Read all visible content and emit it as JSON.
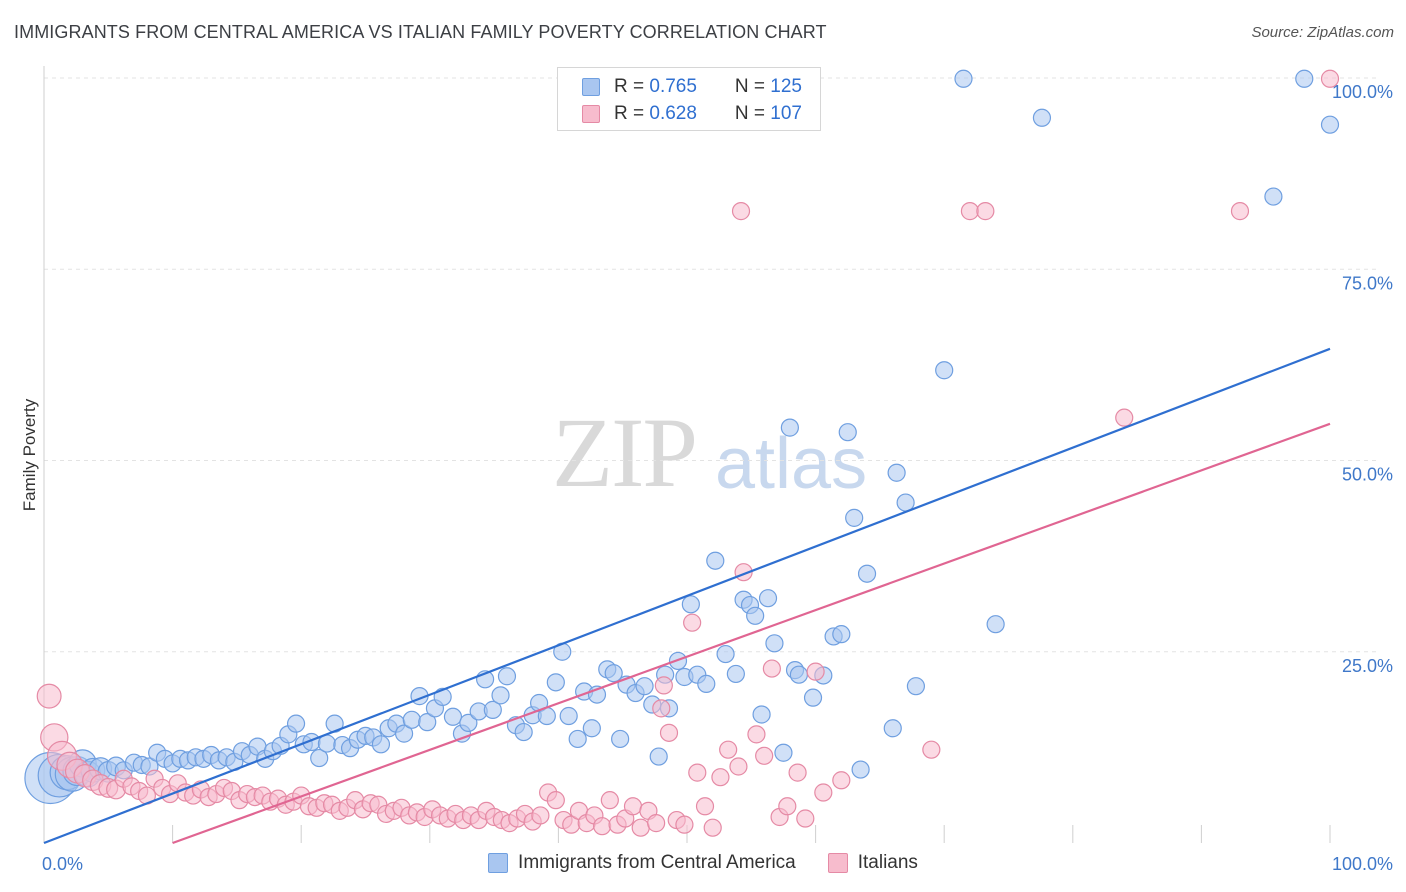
{
  "title": "IMMIGRANTS FROM CENTRAL AMERICA VS ITALIAN FAMILY POVERTY CORRELATION CHART",
  "source": "Source: ZipAtlas.com",
  "watermark": {
    "zip": "ZIP",
    "atlas": "atlas"
  },
  "legend": {
    "rows": [
      {
        "r_label": "R = ",
        "r_value": "0.765",
        "n_label": "N = ",
        "n_value": "125",
        "color": "#a9c6f0",
        "border": "#6f9fe0"
      },
      {
        "r_label": "R = ",
        "r_value": "0.628",
        "n_label": "N = ",
        "n_value": "107",
        "color": "#f7bccd",
        "border": "#e58aa5"
      }
    ]
  },
  "bottom_legend": [
    {
      "label": "Immigrants from Central America",
      "color": "#a9c6f0",
      "border": "#6f9fe0"
    },
    {
      "label": "Italians",
      "color": "#f7bccd",
      "border": "#e58aa5"
    }
  ],
  "chart_data": {
    "type": "scatter",
    "title": "IMMIGRANTS FROM CENTRAL AMERICA VS ITALIAN FAMILY POVERTY CORRELATION CHART",
    "xlabel": "",
    "ylabel": "Family Poverty",
    "xlim": [
      0,
      100
    ],
    "ylim": [
      0,
      100
    ],
    "x_tick_labels": [
      "0.0%",
      "100.0%"
    ],
    "y_tick_labels": [
      "25.0%",
      "50.0%",
      "75.0%",
      "100.0%"
    ],
    "y_ticks": [
      25,
      50,
      75,
      100
    ],
    "grid": "horizontal dashed",
    "legend_position": "top-center",
    "series": [
      {
        "name": "Immigrants from Central America",
        "color": "#6f9fe0",
        "fill": "#a9c6f0",
        "line_color": "#2f6fd0",
        "trend": {
          "x0": 0,
          "y0": 0,
          "x1": 100,
          "y1": 64.6
        },
        "points": [
          [
            0.5,
            8.5,
            3
          ],
          [
            1.2,
            8.8,
            2.5
          ],
          [
            1.8,
            9.2,
            2
          ],
          [
            2.2,
            9.0,
            2
          ],
          [
            2.6,
            9.4,
            1.7
          ],
          [
            3.0,
            10.4,
            1.6
          ],
          [
            3.4,
            9.0,
            1.5
          ],
          [
            3.8,
            9.5,
            1.4
          ],
          [
            4.4,
            9.7,
            1.3
          ],
          [
            5.0,
            9.3,
            1.2
          ],
          [
            5.6,
            10.0,
            1.1
          ],
          [
            6.2,
            9.5,
            1
          ],
          [
            7.0,
            10.5,
            1
          ],
          [
            7.6,
            10.2,
            1
          ],
          [
            8.2,
            10.0,
            1
          ],
          [
            8.8,
            11.8,
            1
          ],
          [
            9.4,
            11.0,
            1
          ],
          [
            10.0,
            10.4,
            1
          ],
          [
            10.6,
            11.0,
            1
          ],
          [
            11.2,
            10.8,
            1
          ],
          [
            11.8,
            11.2,
            1
          ],
          [
            12.4,
            11.0,
            1
          ],
          [
            13.0,
            11.5,
            1
          ],
          [
            13.6,
            10.8,
            1
          ],
          [
            14.2,
            11.2,
            1
          ],
          [
            14.8,
            10.6,
            1
          ],
          [
            15.4,
            12.0,
            1
          ],
          [
            16.0,
            11.5,
            1
          ],
          [
            16.6,
            12.6,
            1
          ],
          [
            17.2,
            11.0,
            1
          ],
          [
            17.8,
            12.0,
            1
          ],
          [
            18.4,
            12.7,
            1
          ],
          [
            19.0,
            14.2,
            1
          ],
          [
            19.6,
            15.6,
            1
          ],
          [
            20.2,
            12.9,
            1
          ],
          [
            20.8,
            13.2,
            1
          ],
          [
            21.4,
            11.1,
            1
          ],
          [
            22.0,
            13.0,
            1
          ],
          [
            22.6,
            15.6,
            1
          ],
          [
            23.2,
            12.8,
            1
          ],
          [
            23.8,
            12.4,
            1
          ],
          [
            24.4,
            13.5,
            1
          ],
          [
            25.0,
            14.0,
            1
          ],
          [
            25.6,
            13.8,
            1
          ],
          [
            26.2,
            12.9,
            1
          ],
          [
            26.8,
            15.0,
            1
          ],
          [
            27.4,
            15.6,
            1
          ],
          [
            28.0,
            14.3,
            1
          ],
          [
            28.6,
            16.1,
            1
          ],
          [
            29.2,
            19.2,
            1
          ],
          [
            29.8,
            15.8,
            1
          ],
          [
            30.4,
            17.6,
            1
          ],
          [
            31.0,
            19.1,
            1
          ],
          [
            31.8,
            16.5,
            1
          ],
          [
            32.5,
            14.3,
            1
          ],
          [
            33.0,
            15.7,
            1
          ],
          [
            33.8,
            17.2,
            1
          ],
          [
            34.3,
            21.4,
            1
          ],
          [
            34.9,
            17.4,
            1
          ],
          [
            35.5,
            19.3,
            1
          ],
          [
            36.0,
            21.8,
            1
          ],
          [
            36.7,
            15.4,
            1
          ],
          [
            37.3,
            14.5,
            1
          ],
          [
            38.0,
            16.7,
            1
          ],
          [
            38.5,
            18.3,
            1
          ],
          [
            39.1,
            16.6,
            1
          ],
          [
            39.8,
            21.0,
            1
          ],
          [
            40.3,
            25.0,
            1
          ],
          [
            40.8,
            16.6,
            1
          ],
          [
            41.5,
            13.6,
            1
          ],
          [
            42.0,
            19.8,
            1
          ],
          [
            42.6,
            15.0,
            1
          ],
          [
            43.0,
            19.4,
            1
          ],
          [
            43.8,
            22.7,
            1
          ],
          [
            44.3,
            22.2,
            1
          ],
          [
            44.8,
            13.6,
            1
          ],
          [
            45.3,
            20.7,
            1
          ],
          [
            46.0,
            19.6,
            1
          ],
          [
            46.7,
            20.5,
            1
          ],
          [
            47.3,
            18.1,
            1
          ],
          [
            47.8,
            11.3,
            1
          ],
          [
            48.3,
            22.0,
            1
          ],
          [
            48.6,
            17.6,
            1
          ],
          [
            49.3,
            23.8,
            1
          ],
          [
            49.8,
            21.7,
            1
          ],
          [
            50.3,
            31.2,
            1
          ],
          [
            50.8,
            22.0,
            1
          ],
          [
            51.5,
            20.8,
            1
          ],
          [
            52.2,
            36.9,
            1
          ],
          [
            53.0,
            24.7,
            1
          ],
          [
            53.8,
            22.1,
            1
          ],
          [
            54.4,
            31.8,
            1
          ],
          [
            54.9,
            31.1,
            1
          ],
          [
            55.3,
            29.7,
            1
          ],
          [
            55.8,
            16.8,
            1
          ],
          [
            56.3,
            32.0,
            1
          ],
          [
            56.8,
            26.1,
            1
          ],
          [
            57.5,
            11.8,
            1
          ],
          [
            58.0,
            54.3,
            1
          ],
          [
            58.4,
            22.6,
            1
          ],
          [
            58.7,
            22.0,
            1
          ],
          [
            59.8,
            19.0,
            1
          ],
          [
            60.6,
            21.9,
            1
          ],
          [
            61.4,
            27.0,
            1
          ],
          [
            62.0,
            27.3,
            1
          ],
          [
            62.5,
            53.7,
            1
          ],
          [
            63.0,
            42.5,
            1
          ],
          [
            63.5,
            9.6,
            1
          ],
          [
            64.0,
            35.2,
            1
          ],
          [
            66.0,
            15.0,
            1
          ],
          [
            66.3,
            48.4,
            1
          ],
          [
            67.0,
            44.5,
            1
          ],
          [
            67.8,
            20.5,
            1
          ],
          [
            70.0,
            61.8,
            1
          ],
          [
            71.5,
            99.9,
            1
          ],
          [
            74.0,
            28.6,
            1
          ],
          [
            77.6,
            94.8,
            1
          ],
          [
            95.6,
            84.5,
            1
          ],
          [
            98.0,
            99.9,
            1
          ],
          [
            100.0,
            93.9,
            1
          ]
        ]
      },
      {
        "name": "Italians",
        "color": "#e58aa5",
        "fill": "#f7bccd",
        "line_color": "#e06592",
        "trend": {
          "x0": 10,
          "y0": 0,
          "x1": 100,
          "y1": 54.8
        },
        "points": [
          [
            0.4,
            19.2,
            1.4
          ],
          [
            0.8,
            13.8,
            1.6
          ],
          [
            1.4,
            11.4,
            1.7
          ],
          [
            2.0,
            10.2,
            1.5
          ],
          [
            2.6,
            9.4,
            1.4
          ],
          [
            3.2,
            8.8,
            1.3
          ],
          [
            3.8,
            8.2,
            1.2
          ],
          [
            4.4,
            7.6,
            1.2
          ],
          [
            5.0,
            7.2,
            1.1
          ],
          [
            5.6,
            7.0,
            1.1
          ],
          [
            6.2,
            8.4,
            1
          ],
          [
            6.8,
            7.4,
            1
          ],
          [
            7.4,
            6.8,
            1
          ],
          [
            8.0,
            6.2,
            1
          ],
          [
            8.6,
            8.4,
            1
          ],
          [
            9.2,
            7.2,
            1
          ],
          [
            9.8,
            6.4,
            1
          ],
          [
            10.4,
            7.8,
            1
          ],
          [
            11.0,
            6.6,
            1
          ],
          [
            11.6,
            6.2,
            1
          ],
          [
            12.2,
            7.0,
            1
          ],
          [
            12.8,
            6.0,
            1
          ],
          [
            13.4,
            6.4,
            1
          ],
          [
            14.0,
            7.2,
            1
          ],
          [
            14.6,
            6.8,
            1
          ],
          [
            15.2,
            5.6,
            1
          ],
          [
            15.8,
            6.4,
            1
          ],
          [
            16.4,
            6.0,
            1
          ],
          [
            17.0,
            6.2,
            1
          ],
          [
            17.6,
            5.4,
            1
          ],
          [
            18.2,
            5.8,
            1
          ],
          [
            18.8,
            5.0,
            1
          ],
          [
            19.4,
            5.4,
            1
          ],
          [
            20.0,
            6.2,
            1
          ],
          [
            20.6,
            4.8,
            1
          ],
          [
            21.2,
            4.6,
            1
          ],
          [
            21.8,
            5.2,
            1
          ],
          [
            22.4,
            5.0,
            1
          ],
          [
            23.0,
            4.2,
            1
          ],
          [
            23.6,
            4.6,
            1
          ],
          [
            24.2,
            5.6,
            1
          ],
          [
            24.8,
            4.4,
            1
          ],
          [
            25.4,
            5.2,
            1
          ],
          [
            26.0,
            5.0,
            1
          ],
          [
            26.6,
            3.8,
            1
          ],
          [
            27.2,
            4.2,
            1
          ],
          [
            27.8,
            4.6,
            1
          ],
          [
            28.4,
            3.6,
            1
          ],
          [
            29.0,
            4.0,
            1
          ],
          [
            29.6,
            3.4,
            1
          ],
          [
            30.2,
            4.4,
            1
          ],
          [
            30.8,
            3.6,
            1
          ],
          [
            31.4,
            3.2,
            1
          ],
          [
            32.0,
            3.8,
            1
          ],
          [
            32.6,
            3.0,
            1
          ],
          [
            33.2,
            3.6,
            1
          ],
          [
            33.8,
            3.0,
            1
          ],
          [
            34.4,
            4.2,
            1
          ],
          [
            35.0,
            3.4,
            1
          ],
          [
            35.6,
            3.0,
            1
          ],
          [
            36.2,
            2.6,
            1
          ],
          [
            36.8,
            3.2,
            1
          ],
          [
            37.4,
            3.8,
            1
          ],
          [
            38.0,
            2.8,
            1
          ],
          [
            38.6,
            3.6,
            1
          ],
          [
            39.2,
            6.6,
            1
          ],
          [
            39.8,
            5.6,
            1
          ],
          [
            40.4,
            3.0,
            1
          ],
          [
            41.0,
            2.4,
            1
          ],
          [
            41.6,
            4.2,
            1
          ],
          [
            42.2,
            2.6,
            1
          ],
          [
            42.8,
            3.6,
            1
          ],
          [
            43.4,
            2.2,
            1
          ],
          [
            44.0,
            5.6,
            1
          ],
          [
            44.6,
            2.4,
            1
          ],
          [
            45.2,
            3.2,
            1
          ],
          [
            45.8,
            4.8,
            1
          ],
          [
            46.4,
            2.0,
            1
          ],
          [
            47.0,
            4.2,
            1
          ],
          [
            47.6,
            2.6,
            1
          ],
          [
            48.0,
            17.6,
            1
          ],
          [
            48.2,
            20.6,
            1
          ],
          [
            48.6,
            14.4,
            1
          ],
          [
            49.2,
            3.0,
            1
          ],
          [
            49.8,
            2.4,
            1
          ],
          [
            50.4,
            28.8,
            1
          ],
          [
            50.8,
            9.2,
            1
          ],
          [
            51.4,
            4.8,
            1
          ],
          [
            52.0,
            2.0,
            1
          ],
          [
            52.6,
            8.6,
            1
          ],
          [
            53.2,
            12.2,
            1
          ],
          [
            54.0,
            10.0,
            1
          ],
          [
            54.4,
            35.4,
            1
          ],
          [
            55.4,
            14.2,
            1
          ],
          [
            56.0,
            11.4,
            1
          ],
          [
            56.6,
            22.8,
            1
          ],
          [
            57.2,
            3.4,
            1
          ],
          [
            57.8,
            4.8,
            1
          ],
          [
            58.6,
            9.2,
            1
          ],
          [
            59.2,
            3.2,
            1
          ],
          [
            60.0,
            22.4,
            1
          ],
          [
            60.6,
            6.6,
            1
          ],
          [
            62.0,
            8.2,
            1
          ],
          [
            69.0,
            12.2,
            1
          ],
          [
            72.0,
            82.6,
            1
          ],
          [
            84.0,
            55.6,
            1
          ],
          [
            93.0,
            82.6,
            1
          ],
          [
            100.0,
            99.9,
            1
          ],
          [
            54.2,
            82.6,
            1
          ],
          [
            73.2,
            82.6,
            1
          ]
        ]
      }
    ]
  }
}
